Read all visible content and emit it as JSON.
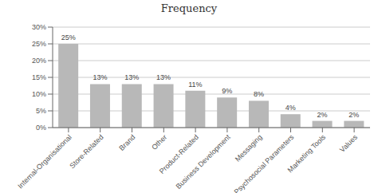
{
  "chart_data": {
    "type": "bar",
    "title": "Frequency",
    "categories": [
      "Internal-Organisational",
      "Store-Related",
      "Brand",
      "Other",
      "Product-Related",
      "Business Development",
      "Messaging",
      "Psychosocial Parameters",
      "Marketing Tools",
      "Values"
    ],
    "values": [
      25,
      13,
      13,
      13,
      11,
      9,
      8,
      4,
      2,
      2
    ],
    "value_labels": [
      "25%",
      "13%",
      "13%",
      "13%",
      "11%",
      "9%",
      "8%",
      "4%",
      "2%",
      "2%"
    ],
    "data_labels": true,
    "color": "#b8b8b8",
    "ylim": [
      0,
      30
    ],
    "yticks": [
      {
        "value": 0,
        "label": "0%"
      },
      {
        "value": 5,
        "label": "5%"
      },
      {
        "value": 10,
        "label": "10%"
      },
      {
        "value": 15,
        "label": "15%"
      },
      {
        "value": 20,
        "label": "20%"
      },
      {
        "value": 25,
        "label": "25%"
      },
      {
        "value": 30,
        "label": "30%"
      }
    ],
    "grid": true
  }
}
